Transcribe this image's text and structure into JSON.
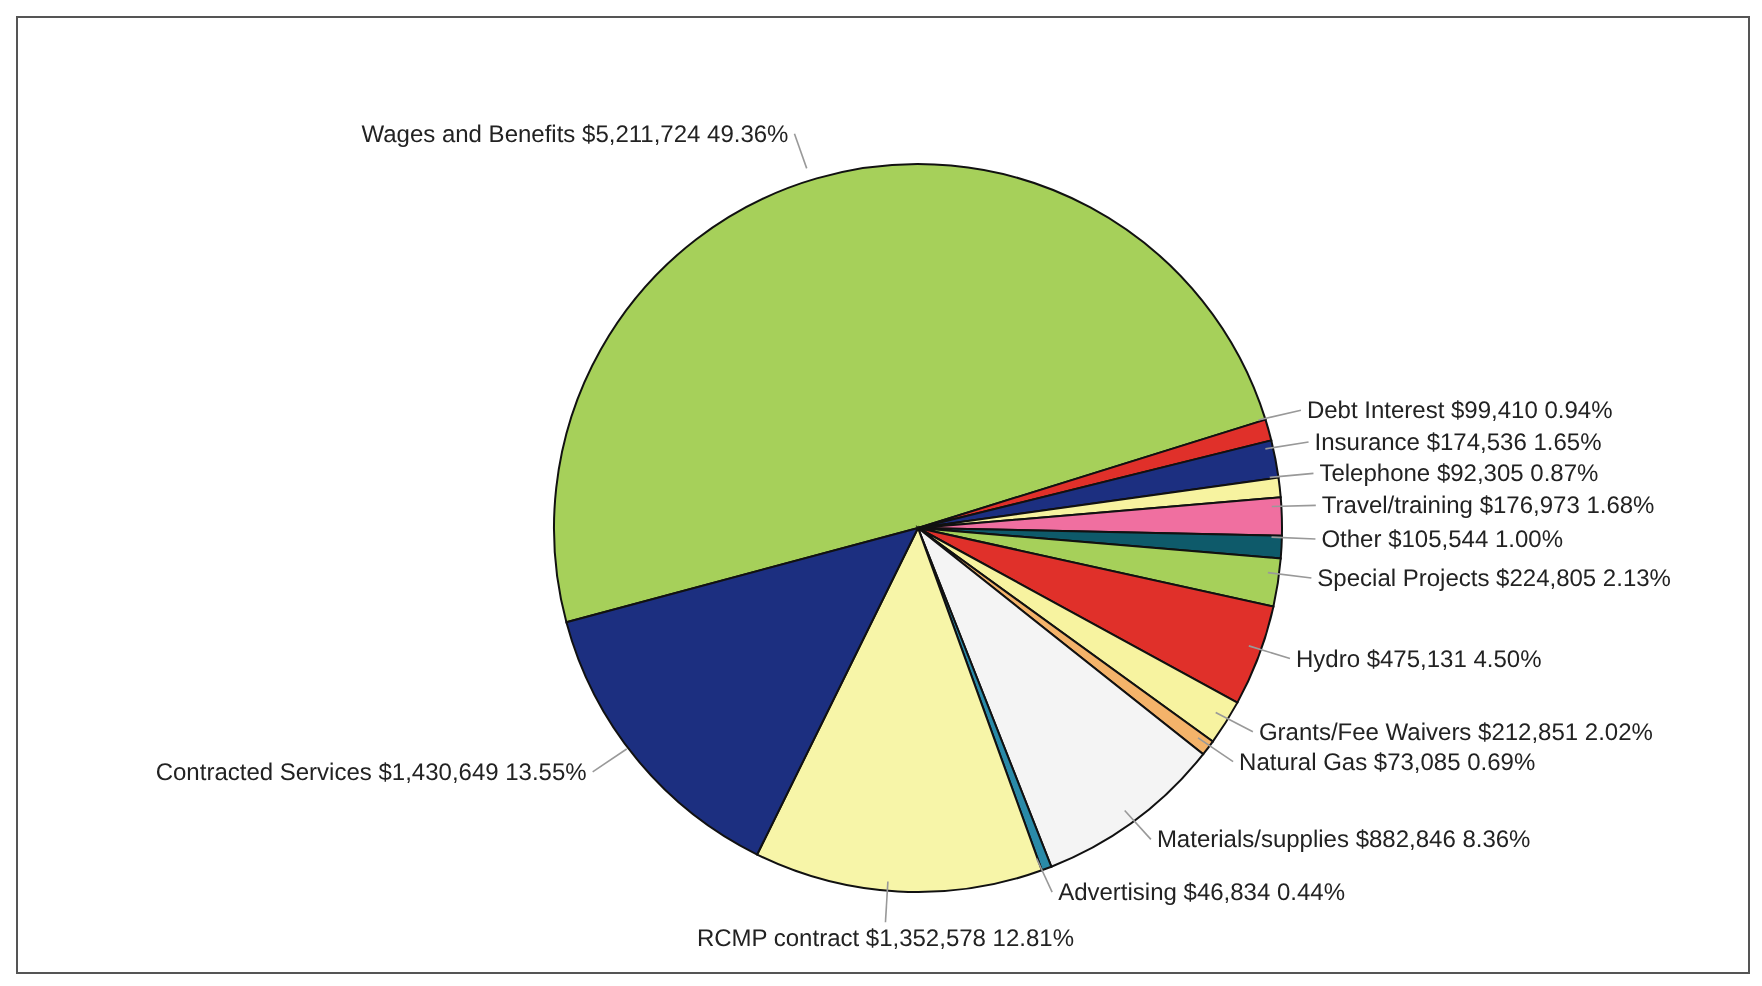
{
  "chart_data": {
    "type": "pie",
    "categories": [
      "Wages and Benefits",
      "Debt Interest",
      "Insurance",
      "Telephone",
      "Travel/training",
      "Other",
      "Special Projects",
      "Hydro",
      "Grants/Fee Waivers",
      "Natural Gas",
      "Materials/supplies",
      "Advertising",
      "RCMP contract",
      "Contracted Services"
    ],
    "values": [
      5211724,
      99410,
      174536,
      92305,
      176973,
      105544,
      224805,
      475131,
      212851,
      73085,
      882846,
      46834,
      1352578,
      1430649
    ],
    "value_labels": [
      "$5,211,724 49.36%",
      "$99,410 0.94%",
      "$174,536 1.65%",
      "$92,305 0.87%",
      "$176,973 1.68%",
      "$105,544 1.00%",
      "$224,805 2.13%",
      "$475,131 4.50%",
      "$212,851 2.02%",
      "$73,085 0.69%",
      "$882,846 8.36%",
      "$46,834 0.44%",
      "$1,352,578 12.81%",
      "$1,430,649 13.55%"
    ],
    "colors": [
      "#a6d05a",
      "#e0302a",
      "#1c2f80",
      "#f7f3a0",
      "#f06fa0",
      "#0e5a6a",
      "#a6d05a",
      "#e0302a",
      "#f7f3a0",
      "#f4b36a",
      "#f4f4f4",
      "#2a8aa8",
      "#f7f5a8",
      "#1c2f80"
    ]
  }
}
